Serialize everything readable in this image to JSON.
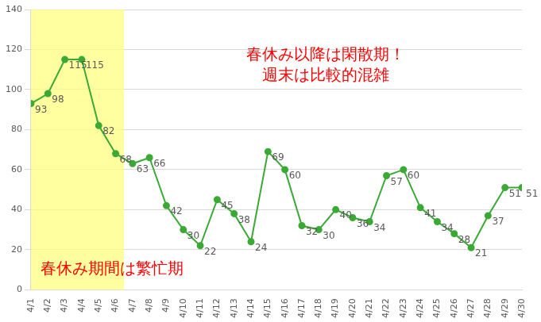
{
  "chart_data": {
    "type": "line",
    "categories": [
      "4/1",
      "4/2",
      "4/3",
      "4/4",
      "4/5",
      "4/6",
      "4/7",
      "4/8",
      "4/9",
      "4/10",
      "4/11",
      "4/12",
      "4/13",
      "4/14",
      "4/15",
      "4/16",
      "4/17",
      "4/18",
      "4/19",
      "4/20",
      "4/21",
      "4/22",
      "4/23",
      "4/24",
      "4/25",
      "4/26",
      "4/27",
      "4/28",
      "4/29",
      "4/30"
    ],
    "values": [
      93,
      98,
      115,
      115,
      82,
      68,
      63,
      66,
      42,
      30,
      22,
      45,
      38,
      24,
      69,
      60,
      32,
      30,
      40,
      36,
      34,
      57,
      60,
      41,
      34,
      28,
      21,
      37,
      51,
      51
    ],
    "color": "#3aaa35",
    "marker": "circle",
    "line_style": "solid",
    "ylim": [
      0,
      140
    ],
    "yticks": [
      0,
      20,
      40,
      60,
      80,
      100,
      120,
      140
    ],
    "grid": true,
    "data_labels": true,
    "annotations": [
      {
        "text": "春休み以降は閑散期！\n週末は比較的混雑"
      }
    ],
    "highlight": {
      "from": "4/1",
      "to": "4/6",
      "label": "春休み期間は繁忙期"
    }
  }
}
